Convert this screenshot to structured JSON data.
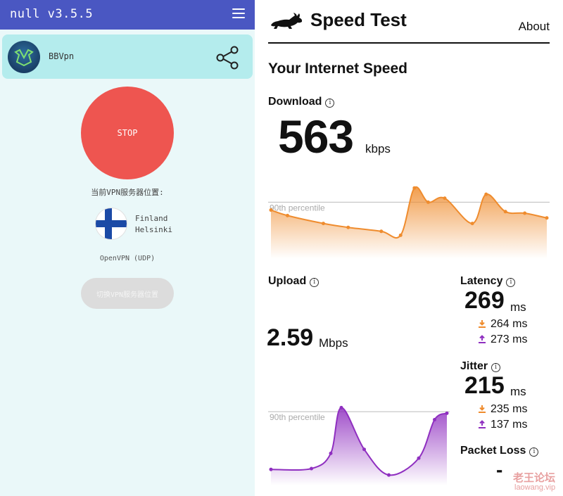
{
  "vpn": {
    "title": "null v3.5.5",
    "provider": "BBVpn",
    "stop_label": "STOP",
    "server_label": "当前VPN服务器位置:",
    "country": "Finland",
    "city": "Helsinki",
    "protocol": "OpenVPN (UDP)",
    "switch_label": "切换VPN服务器位置"
  },
  "speedtest": {
    "brand": "Speed Test",
    "about": "About",
    "section_title": "Your Internet Speed",
    "info_glyph": "i",
    "download": {
      "label": "Download",
      "value": "563",
      "unit": "kbps"
    },
    "upload": {
      "label": "Upload",
      "value": "2.59",
      "unit": "Mbps"
    },
    "latency": {
      "label": "Latency",
      "value": "269",
      "unit": "ms",
      "down": "264 ms",
      "up": "273 ms"
    },
    "jitter": {
      "label": "Jitter",
      "value": "215",
      "unit": "ms",
      "down": "235 ms",
      "up": "137 ms"
    },
    "packet_loss": {
      "label": "Packet Loss",
      "value": "-"
    },
    "percentile_label": "90th percentile",
    "colors": {
      "download": "#ef8c2e",
      "upload": "#8f2fc0",
      "text": "#111111"
    }
  },
  "chart_data": [
    {
      "type": "area",
      "name": "download-trend",
      "percentile_label": "90th percentile",
      "y": [
        0.62,
        0.55,
        0.45,
        0.4,
        0.35,
        0.3,
        0.9,
        0.72,
        0.77,
        0.45,
        0.82,
        0.6,
        0.58,
        0.52
      ],
      "x": [
        0,
        0.06,
        0.19,
        0.28,
        0.4,
        0.47,
        0.52,
        0.57,
        0.63,
        0.73,
        0.78,
        0.85,
        0.92,
        1.0
      ],
      "percentile_y": 0.72,
      "grid": false,
      "color": "#ef8c2e"
    },
    {
      "type": "area",
      "name": "upload-trend",
      "percentile_label": "90th percentile",
      "x": [
        0,
        0.23,
        0.34,
        0.4,
        0.53,
        0.67,
        0.84,
        0.93,
        1.0
      ],
      "y": [
        0.2,
        0.21,
        0.4,
        0.97,
        0.45,
        0.13,
        0.34,
        0.82,
        0.9
      ],
      "percentile_y": 0.92,
      "grid": false,
      "color": "#8f2fc0"
    }
  ],
  "watermark": {
    "cn": "老王论坛",
    "url": "laowang.vip"
  }
}
